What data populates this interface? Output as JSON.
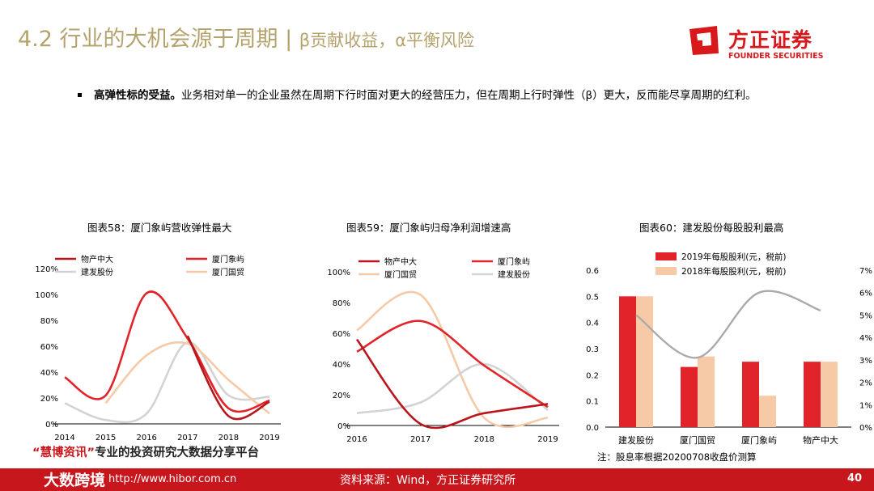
{
  "header": {
    "title": "4.2 行业的大机会源于周期 | ",
    "subtitle": "β贡献收益，α平衡风险"
  },
  "logo": {
    "cn": "方正证券",
    "en": "FOUNDER SECURITIES"
  },
  "bullet": {
    "bold": "高弹性标的受益。",
    "text": "业务相对单一的企业虽然在周期下行时面对更大的经营压力，但在周期上行时弹性（β）更大，反而能尽享周期的红利。"
  },
  "colors": {
    "dark_red": "#b8161c",
    "red": "#e0242a",
    "light_grey": "#d3d3d3",
    "peach": "#f6c9a7",
    "gold_title": "#b5a36e"
  },
  "chart_data": [
    {
      "type": "line",
      "title": "图表58：厦门象屿营收弹性最大",
      "x": [
        "2014",
        "2015",
        "2016",
        "2017",
        "2018",
        "2019"
      ],
      "ylim": [
        0,
        120
      ],
      "yticks": [
        "0%",
        "20%",
        "40%",
        "60%",
        "80%",
        "100%",
        "120%"
      ],
      "legend": "top",
      "series": [
        {
          "name": "物产中大",
          "values": [
            null,
            null,
            null,
            68,
            6,
            17
          ]
        },
        {
          "name": "厦门象屿",
          "values": [
            36,
            22,
            101,
            66,
            12,
            18
          ]
        },
        {
          "name": "建发股份",
          "values": [
            16,
            3,
            8,
            63,
            22,
            21
          ]
        },
        {
          "name": "厦门国贸",
          "values": [
            null,
            16,
            53,
            62,
            34,
            8
          ]
        }
      ]
    },
    {
      "type": "line",
      "title": "图表59：厦门象屿归母净利润增速高",
      "x": [
        "2016",
        "2017",
        "2018",
        "2019"
      ],
      "ylim": [
        0,
        100
      ],
      "yticks": [
        "0%",
        "20%",
        "40%",
        "60%",
        "80%",
        "100%"
      ],
      "legend": "top",
      "series": [
        {
          "name": "物产中大",
          "values": [
            56,
            1,
            8,
            14
          ]
        },
        {
          "name": "厦门象屿",
          "values": [
            48,
            68,
            39,
            12
          ]
        },
        {
          "name": "厦门国贸",
          "values": [
            62,
            85,
            5,
            5
          ]
        },
        {
          "name": "建发股份",
          "values": [
            8,
            15,
            40,
            10
          ]
        }
      ]
    },
    {
      "type": "bar",
      "title": "图表60：建发股份每股股利最高",
      "categories": [
        "建发股份",
        "厦门国贸",
        "厦门象屿",
        "物产中大"
      ],
      "ylim": [
        0,
        0.6
      ],
      "yticks": [
        "0.0",
        "0.1",
        "0.2",
        "0.3",
        "0.4",
        "0.5",
        "0.6"
      ],
      "y2lim": [
        0,
        7
      ],
      "y2ticks": [
        "0%",
        "1%",
        "2%",
        "3%",
        "4%",
        "5%",
        "6%",
        "7%"
      ],
      "legend": "top",
      "series": [
        {
          "name": "2019年每股股利(元，税前)",
          "values": [
            0.5,
            0.23,
            0.25,
            0.25
          ]
        },
        {
          "name": "2018年每股股利(元，税前)",
          "values": [
            0.5,
            0.27,
            0.12,
            0.25
          ]
        }
      ],
      "line": {
        "values": [
          5.0,
          3.1,
          6.0,
          5.2
        ]
      },
      "note": "注：股息率根据20200708收盘价测算"
    }
  ],
  "watermark": {
    "q": "“慧博资讯”",
    "text": "专业的投资研究大数据分享平台",
    "brand": "大数跨境",
    "url": "http://www.hibor.com.cn"
  },
  "footer": {
    "source": "资料来源：Wind，方正证券研究所",
    "page": "40"
  }
}
